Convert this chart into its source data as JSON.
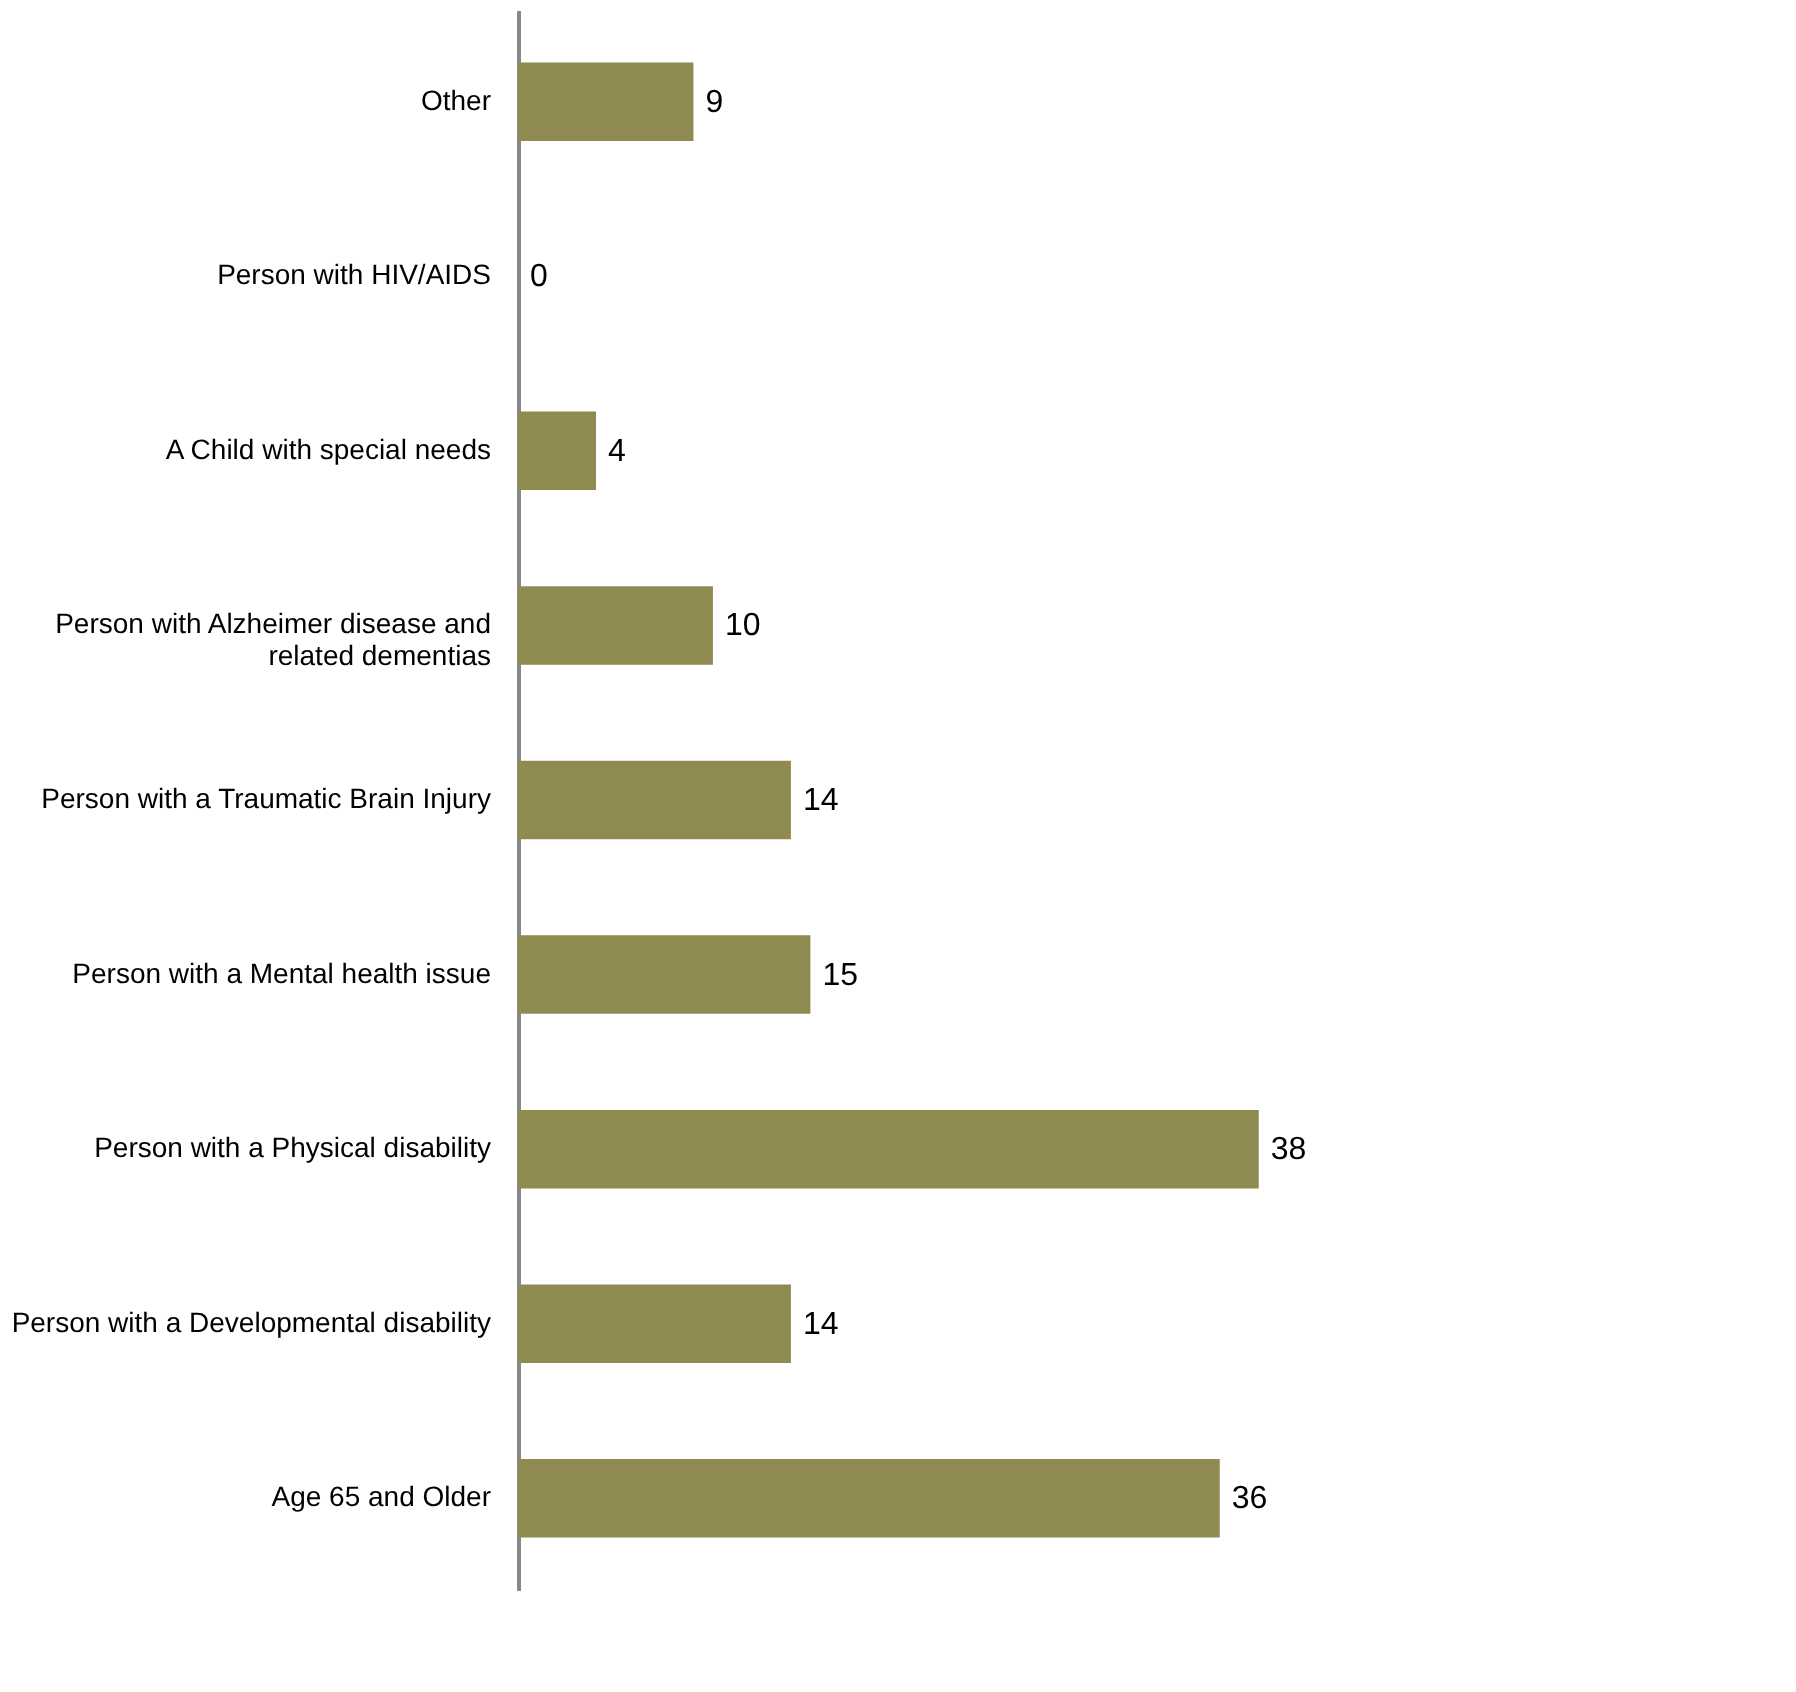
{
  "chart_data": {
    "type": "bar",
    "orientation": "horizontal",
    "data_labels": true,
    "grid": false,
    "categories": [
      "Other",
      "Person with HIV/AIDS",
      "A Child with special needs",
      "Person with Alzheimer disease and related dementias",
      "Person with a Traumatic Brain Injury",
      "Person with a Mental health issue",
      "Person with a Physical disability",
      "Person with a Developmental disability",
      "Age 65 and Older"
    ],
    "values": [
      9,
      0,
      4,
      10,
      14,
      15,
      38,
      14,
      36
    ],
    "color": "#8f8a50"
  }
}
